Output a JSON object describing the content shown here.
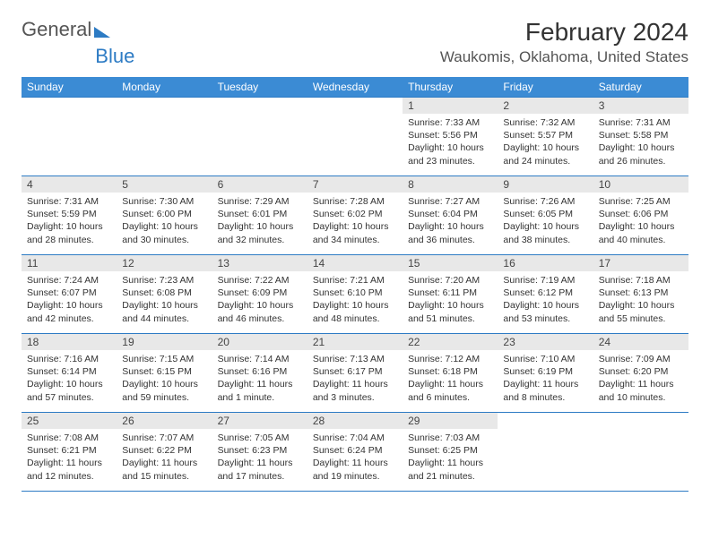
{
  "brand": {
    "part1": "General",
    "part2": "Blue"
  },
  "title": "February 2024",
  "location": "Waukomis, Oklahoma, United States",
  "colors": {
    "header_bg": "#3b8bd4",
    "border": "#2d7bc4",
    "daynum_bg": "#e8e8e8",
    "background": "#ffffff"
  },
  "columns": [
    "Sunday",
    "Monday",
    "Tuesday",
    "Wednesday",
    "Thursday",
    "Friday",
    "Saturday"
  ],
  "weeks": [
    [
      null,
      null,
      null,
      null,
      {
        "n": "1",
        "sr": "7:33 AM",
        "ss": "5:56 PM",
        "dl": "10 hours and 23 minutes."
      },
      {
        "n": "2",
        "sr": "7:32 AM",
        "ss": "5:57 PM",
        "dl": "10 hours and 24 minutes."
      },
      {
        "n": "3",
        "sr": "7:31 AM",
        "ss": "5:58 PM",
        "dl": "10 hours and 26 minutes."
      }
    ],
    [
      {
        "n": "4",
        "sr": "7:31 AM",
        "ss": "5:59 PM",
        "dl": "10 hours and 28 minutes."
      },
      {
        "n": "5",
        "sr": "7:30 AM",
        "ss": "6:00 PM",
        "dl": "10 hours and 30 minutes."
      },
      {
        "n": "6",
        "sr": "7:29 AM",
        "ss": "6:01 PM",
        "dl": "10 hours and 32 minutes."
      },
      {
        "n": "7",
        "sr": "7:28 AM",
        "ss": "6:02 PM",
        "dl": "10 hours and 34 minutes."
      },
      {
        "n": "8",
        "sr": "7:27 AM",
        "ss": "6:04 PM",
        "dl": "10 hours and 36 minutes."
      },
      {
        "n": "9",
        "sr": "7:26 AM",
        "ss": "6:05 PM",
        "dl": "10 hours and 38 minutes."
      },
      {
        "n": "10",
        "sr": "7:25 AM",
        "ss": "6:06 PM",
        "dl": "10 hours and 40 minutes."
      }
    ],
    [
      {
        "n": "11",
        "sr": "7:24 AM",
        "ss": "6:07 PM",
        "dl": "10 hours and 42 minutes."
      },
      {
        "n": "12",
        "sr": "7:23 AM",
        "ss": "6:08 PM",
        "dl": "10 hours and 44 minutes."
      },
      {
        "n": "13",
        "sr": "7:22 AM",
        "ss": "6:09 PM",
        "dl": "10 hours and 46 minutes."
      },
      {
        "n": "14",
        "sr": "7:21 AM",
        "ss": "6:10 PM",
        "dl": "10 hours and 48 minutes."
      },
      {
        "n": "15",
        "sr": "7:20 AM",
        "ss": "6:11 PM",
        "dl": "10 hours and 51 minutes."
      },
      {
        "n": "16",
        "sr": "7:19 AM",
        "ss": "6:12 PM",
        "dl": "10 hours and 53 minutes."
      },
      {
        "n": "17",
        "sr": "7:18 AM",
        "ss": "6:13 PM",
        "dl": "10 hours and 55 minutes."
      }
    ],
    [
      {
        "n": "18",
        "sr": "7:16 AM",
        "ss": "6:14 PM",
        "dl": "10 hours and 57 minutes."
      },
      {
        "n": "19",
        "sr": "7:15 AM",
        "ss": "6:15 PM",
        "dl": "10 hours and 59 minutes."
      },
      {
        "n": "20",
        "sr": "7:14 AM",
        "ss": "6:16 PM",
        "dl": "11 hours and 1 minute."
      },
      {
        "n": "21",
        "sr": "7:13 AM",
        "ss": "6:17 PM",
        "dl": "11 hours and 3 minutes."
      },
      {
        "n": "22",
        "sr": "7:12 AM",
        "ss": "6:18 PM",
        "dl": "11 hours and 6 minutes."
      },
      {
        "n": "23",
        "sr": "7:10 AM",
        "ss": "6:19 PM",
        "dl": "11 hours and 8 minutes."
      },
      {
        "n": "24",
        "sr": "7:09 AM",
        "ss": "6:20 PM",
        "dl": "11 hours and 10 minutes."
      }
    ],
    [
      {
        "n": "25",
        "sr": "7:08 AM",
        "ss": "6:21 PM",
        "dl": "11 hours and 12 minutes."
      },
      {
        "n": "26",
        "sr": "7:07 AM",
        "ss": "6:22 PM",
        "dl": "11 hours and 15 minutes."
      },
      {
        "n": "27",
        "sr": "7:05 AM",
        "ss": "6:23 PM",
        "dl": "11 hours and 17 minutes."
      },
      {
        "n": "28",
        "sr": "7:04 AM",
        "ss": "6:24 PM",
        "dl": "11 hours and 19 minutes."
      },
      {
        "n": "29",
        "sr": "7:03 AM",
        "ss": "6:25 PM",
        "dl": "11 hours and 21 minutes."
      },
      null,
      null
    ]
  ],
  "labels": {
    "sunrise": "Sunrise: ",
    "sunset": "Sunset: ",
    "daylight": "Daylight: "
  }
}
